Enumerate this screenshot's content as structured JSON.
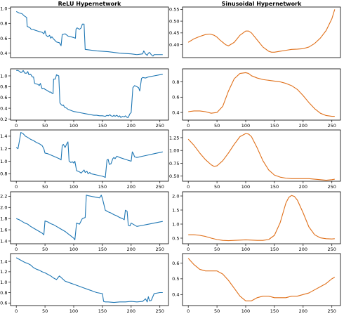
{
  "titles": {
    "left": "ReLU Hypernetwork",
    "right": "Sinusoidal Hypernetwork"
  },
  "colors": {
    "relu": "#1f77b4",
    "sin": "#e0701a"
  },
  "chart_data": [
    {
      "id": "relu-1",
      "type": "line",
      "color": "#1f77b4",
      "xlim": [
        -10,
        265
      ],
      "ylim": [
        0.34,
        1.02
      ],
      "xticks": [],
      "yticks": [
        0.4,
        0.6,
        0.8,
        1.0
      ],
      "x": [
        0,
        5,
        10,
        14,
        18,
        19,
        24,
        26,
        30,
        32,
        36,
        40,
        45,
        48,
        50,
        52,
        55,
        58,
        60,
        62,
        65,
        70,
        75,
        78,
        80,
        85,
        90,
        95,
        100,
        103,
        104,
        106,
        108,
        110,
        113,
        115,
        118,
        120,
        140,
        160,
        180,
        200,
        210,
        220,
        222,
        225,
        228,
        230,
        232,
        235,
        238,
        240,
        245,
        250,
        255
      ],
      "y": [
        0.96,
        0.94,
        0.93,
        0.9,
        0.88,
        0.76,
        0.74,
        0.72,
        0.72,
        0.71,
        0.7,
        0.69,
        0.68,
        0.66,
        0.7,
        0.64,
        0.62,
        0.64,
        0.6,
        0.62,
        0.59,
        0.55,
        0.54,
        0.5,
        0.65,
        0.66,
        0.63,
        0.62,
        0.61,
        0.6,
        0.72,
        0.74,
        0.73,
        0.72,
        0.74,
        0.79,
        0.79,
        0.45,
        0.43,
        0.42,
        0.4,
        0.39,
        0.38,
        0.39,
        0.43,
        0.39,
        0.37,
        0.4,
        0.41,
        0.38,
        0.36,
        0.38,
        0.38,
        0.38,
        0.38
      ]
    },
    {
      "id": "sin-1",
      "type": "line",
      "color": "#e0701a",
      "xlim": [
        -10,
        265
      ],
      "ylim": [
        0.345,
        0.56
      ],
      "xticks": [],
      "yticks": [
        0.4,
        0.45,
        0.5,
        0.55
      ],
      "x": [
        0,
        10,
        20,
        30,
        38,
        45,
        50,
        55,
        60,
        65,
        70,
        80,
        90,
        100,
        105,
        110,
        120,
        130,
        140,
        145,
        150,
        160,
        170,
        180,
        190,
        200,
        210,
        220,
        230,
        240,
        250,
        255
      ],
      "y": [
        0.41,
        0.425,
        0.435,
        0.443,
        0.445,
        0.44,
        0.432,
        0.42,
        0.41,
        0.4,
        0.395,
        0.41,
        0.44,
        0.458,
        0.458,
        0.45,
        0.42,
        0.39,
        0.372,
        0.368,
        0.368,
        0.372,
        0.376,
        0.38,
        0.381,
        0.383,
        0.39,
        0.405,
        0.428,
        0.46,
        0.51,
        0.55
      ]
    },
    {
      "id": "relu-2",
      "type": "line",
      "color": "#1f77b4",
      "xlim": [
        -10,
        265
      ],
      "ylim": [
        0.18,
        1.13
      ],
      "xticks": [
        0,
        50,
        100,
        150,
        200,
        250
      ],
      "yticks": [
        0.2,
        0.4,
        0.6,
        0.8,
        1.0
      ],
      "x": [
        0,
        3,
        6,
        8,
        10,
        12,
        15,
        18,
        20,
        22,
        25,
        28,
        30,
        32,
        35,
        38,
        40,
        42,
        45,
        48,
        50,
        52,
        55,
        58,
        60,
        62,
        64,
        65,
        68,
        70,
        72,
        74,
        76,
        78,
        80,
        82,
        84,
        86,
        88,
        90,
        95,
        100,
        105,
        110,
        115,
        120,
        125,
        130,
        135,
        140,
        145,
        150,
        155,
        158,
        160,
        163,
        165,
        168,
        170,
        172,
        175,
        178,
        180,
        182,
        185,
        188,
        190,
        193,
        195,
        198,
        200,
        203,
        206,
        210,
        213,
        215,
        218,
        220,
        225,
        230,
        240,
        250,
        255
      ],
      "y": [
        1.1,
        1.1,
        1.08,
        1.06,
        1.07,
        1.1,
        1.05,
        1.05,
        1.08,
        1.02,
        1.03,
        0.98,
        0.98,
        0.86,
        0.85,
        0.84,
        0.82,
        0.86,
        0.76,
        0.77,
        0.75,
        0.74,
        0.72,
        0.7,
        0.7,
        0.68,
        0.67,
        0.94,
        0.94,
        1.02,
        1.01,
        1.0,
        0.5,
        0.47,
        0.45,
        0.46,
        0.42,
        0.41,
        0.4,
        0.38,
        0.36,
        0.34,
        0.33,
        0.32,
        0.31,
        0.3,
        0.29,
        0.28,
        0.27,
        0.27,
        0.26,
        0.26,
        0.25,
        0.27,
        0.26,
        0.28,
        0.26,
        0.25,
        0.27,
        0.25,
        0.27,
        0.24,
        0.26,
        0.23,
        0.25,
        0.24,
        0.26,
        0.23,
        0.23,
        0.3,
        0.32,
        0.78,
        0.82,
        0.8,
        0.78,
        0.72,
        0.95,
        0.97,
        0.96,
        0.98,
        1.0,
        1.02,
        1.03
      ]
    },
    {
      "id": "sin-2",
      "type": "line",
      "color": "#e0701a",
      "xlim": [
        -10,
        265
      ],
      "ylim": [
        0.3,
        0.97
      ],
      "xticks": [
        0,
        50,
        100,
        150,
        200,
        250
      ],
      "yticks": [
        0.4,
        0.6,
        0.8
      ],
      "x": [
        0,
        10,
        20,
        30,
        40,
        50,
        60,
        70,
        80,
        90,
        100,
        105,
        110,
        120,
        130,
        140,
        150,
        160,
        170,
        180,
        190,
        200,
        210,
        220,
        230,
        240,
        250,
        255
      ],
      "y": [
        0.41,
        0.42,
        0.42,
        0.41,
        0.39,
        0.4,
        0.48,
        0.68,
        0.84,
        0.91,
        0.92,
        0.91,
        0.88,
        0.85,
        0.83,
        0.82,
        0.81,
        0.8,
        0.78,
        0.75,
        0.7,
        0.62,
        0.53,
        0.45,
        0.39,
        0.36,
        0.35,
        0.35
      ]
    },
    {
      "id": "relu-3",
      "type": "line",
      "color": "#1f77b4",
      "xlim": [
        -10,
        265
      ],
      "ylim": [
        0.68,
        1.5
      ],
      "xticks": [
        0,
        50,
        100,
        150,
        200,
        250
      ],
      "yticks": [
        0.8,
        1.0,
        1.2,
        1.4
      ],
      "x": [
        0,
        3,
        5,
        8,
        12,
        16,
        20,
        25,
        30,
        35,
        40,
        45,
        48,
        50,
        55,
        60,
        65,
        70,
        75,
        78,
        80,
        82,
        85,
        88,
        90,
        92,
        95,
        98,
        100,
        102,
        105,
        110,
        113,
        115,
        118,
        120,
        123,
        125,
        128,
        130,
        135,
        140,
        145,
        150,
        153,
        155,
        158,
        160,
        162,
        165,
        168,
        170,
        172,
        175,
        180,
        190,
        200,
        202,
        204,
        206,
        210,
        220,
        230,
        240,
        250,
        255
      ],
      "y": [
        1.22,
        1.2,
        1.3,
        1.46,
        1.44,
        1.4,
        1.38,
        1.35,
        1.33,
        1.3,
        1.28,
        1.25,
        1.2,
        1.13,
        1.12,
        1.1,
        1.08,
        1.06,
        1.04,
        1.02,
        1.25,
        1.27,
        1.22,
        1.28,
        1.31,
        1.0,
        0.98,
        0.99,
        0.97,
        1.0,
        0.85,
        0.83,
        0.81,
        0.83,
        0.86,
        0.82,
        0.84,
        0.8,
        0.82,
        0.8,
        0.79,
        0.78,
        0.77,
        0.76,
        0.75,
        0.74,
        1.02,
        1.03,
        0.95,
        0.96,
        1.04,
        1.06,
        1.04,
        1.08,
        1.06,
        1.03,
        1.0,
        1.15,
        1.12,
        1.07,
        1.06,
        1.08,
        1.1,
        1.12,
        1.14,
        1.15
      ]
    },
    {
      "id": "sin-3",
      "type": "line",
      "color": "#e0701a",
      "xlim": [
        -10,
        265
      ],
      "ylim": [
        0.4,
        1.4
      ],
      "xticks": [
        0,
        50,
        100,
        150,
        200,
        250
      ],
      "yticks": [
        0.5,
        0.75,
        1.0,
        1.25
      ],
      "x": [
        0,
        10,
        20,
        30,
        40,
        45,
        50,
        60,
        70,
        80,
        90,
        100,
        105,
        110,
        120,
        130,
        140,
        150,
        160,
        170,
        180,
        190,
        200,
        210,
        220,
        230,
        240,
        250,
        255
      ],
      "y": [
        1.22,
        1.1,
        0.95,
        0.82,
        0.72,
        0.69,
        0.7,
        0.8,
        0.95,
        1.12,
        1.27,
        1.33,
        1.32,
        1.27,
        1.05,
        0.8,
        0.62,
        0.52,
        0.48,
        0.46,
        0.45,
        0.45,
        0.45,
        0.45,
        0.44,
        0.43,
        0.42,
        0.43,
        0.44
      ]
    },
    {
      "id": "relu-4",
      "type": "line",
      "color": "#1f77b4",
      "xlim": [
        -10,
        265
      ],
      "ylim": [
        1.35,
        2.28
      ],
      "xticks": [
        0,
        50,
        100,
        150,
        200,
        250
      ],
      "yticks": [
        1.4,
        1.6,
        1.8,
        2.0,
        2.2
      ],
      "x": [
        0,
        5,
        10,
        15,
        20,
        25,
        30,
        35,
        40,
        45,
        48,
        50,
        55,
        60,
        65,
        70,
        75,
        80,
        85,
        90,
        95,
        100,
        102,
        105,
        110,
        115,
        120,
        122,
        125,
        130,
        135,
        140,
        145,
        148,
        150,
        155,
        160,
        165,
        170,
        175,
        180,
        185,
        188,
        190,
        193,
        195,
        198,
        200,
        205,
        210,
        220,
        230,
        240,
        250,
        255
      ],
      "y": [
        1.8,
        1.78,
        1.75,
        1.72,
        1.7,
        1.66,
        1.63,
        1.6,
        1.57,
        1.54,
        1.51,
        1.76,
        1.74,
        1.71,
        1.69,
        1.66,
        1.63,
        1.6,
        1.57,
        1.53,
        1.49,
        1.45,
        1.42,
        1.72,
        1.7,
        1.8,
        1.82,
        2.22,
        2.21,
        2.2,
        2.19,
        2.18,
        2.17,
        2.22,
        2.16,
        1.95,
        1.92,
        1.9,
        1.87,
        1.85,
        1.82,
        1.8,
        1.78,
        1.95,
        1.93,
        1.68,
        1.67,
        1.72,
        1.69,
        1.66,
        1.68,
        1.7,
        1.72,
        1.74,
        1.75
      ]
    },
    {
      "id": "sin-4",
      "type": "line",
      "color": "#e0701a",
      "xlim": [
        -10,
        265
      ],
      "ylim": [
        0.3,
        2.15
      ],
      "xticks": [
        0,
        50,
        100,
        150,
        200,
        250
      ],
      "yticks": [
        0.5,
        1.0,
        1.5,
        2.0
      ],
      "x": [
        0,
        10,
        20,
        30,
        40,
        50,
        60,
        70,
        80,
        90,
        100,
        110,
        120,
        130,
        140,
        150,
        160,
        165,
        170,
        175,
        180,
        185,
        190,
        200,
        210,
        220,
        230,
        240,
        250,
        255
      ],
      "y": [
        0.62,
        0.62,
        0.6,
        0.56,
        0.5,
        0.45,
        0.42,
        0.41,
        0.42,
        0.43,
        0.44,
        0.43,
        0.42,
        0.42,
        0.45,
        0.6,
        1.05,
        1.4,
        1.75,
        1.95,
        2.02,
        1.98,
        1.85,
        1.4,
        0.9,
        0.62,
        0.51,
        0.48,
        0.47,
        0.48
      ]
    },
    {
      "id": "relu-5",
      "type": "line",
      "color": "#1f77b4",
      "xlim": [
        -10,
        265
      ],
      "ylim": [
        0.55,
        1.55
      ],
      "xticks": [
        0,
        50,
        100,
        150,
        200,
        250
      ],
      "yticks": [
        0.6,
        0.8,
        1.0,
        1.2,
        1.4
      ],
      "x": [
        0,
        5,
        10,
        15,
        20,
        25,
        30,
        35,
        40,
        45,
        50,
        55,
        60,
        65,
        70,
        75,
        80,
        85,
        90,
        95,
        100,
        105,
        110,
        115,
        120,
        125,
        130,
        135,
        140,
        145,
        150,
        152,
        155,
        160,
        170,
        180,
        190,
        200,
        210,
        220,
        225,
        228,
        230,
        232,
        235,
        240,
        245,
        250,
        255
      ],
      "y": [
        1.47,
        1.44,
        1.41,
        1.38,
        1.36,
        1.33,
        1.28,
        1.25,
        1.23,
        1.2,
        1.18,
        1.15,
        1.12,
        1.08,
        1.05,
        1.12,
        1.07,
        1.02,
        1.0,
        0.98,
        0.96,
        0.94,
        0.92,
        0.9,
        0.88,
        0.86,
        0.84,
        0.82,
        0.8,
        0.79,
        0.78,
        0.63,
        0.62,
        0.62,
        0.61,
        0.62,
        0.62,
        0.63,
        0.62,
        0.63,
        0.68,
        0.62,
        0.72,
        0.64,
        0.65,
        0.78,
        0.79,
        0.8,
        0.8
      ]
    },
    {
      "id": "sin-5",
      "type": "line",
      "color": "#e0701a",
      "xlim": [
        -10,
        265
      ],
      "ylim": [
        0.33,
        0.66
      ],
      "xticks": [
        0,
        50,
        100,
        150,
        200,
        250
      ],
      "yticks": [
        0.4,
        0.5,
        0.6
      ],
      "x": [
        0,
        10,
        20,
        30,
        40,
        50,
        60,
        70,
        80,
        90,
        100,
        110,
        120,
        130,
        140,
        150,
        160,
        170,
        180,
        190,
        200,
        210,
        220,
        230,
        240,
        250,
        255
      ],
      "y": [
        0.63,
        0.59,
        0.56,
        0.55,
        0.55,
        0.55,
        0.53,
        0.49,
        0.44,
        0.39,
        0.36,
        0.36,
        0.38,
        0.39,
        0.39,
        0.38,
        0.38,
        0.38,
        0.39,
        0.39,
        0.4,
        0.41,
        0.43,
        0.45,
        0.47,
        0.5,
        0.51
      ]
    }
  ]
}
